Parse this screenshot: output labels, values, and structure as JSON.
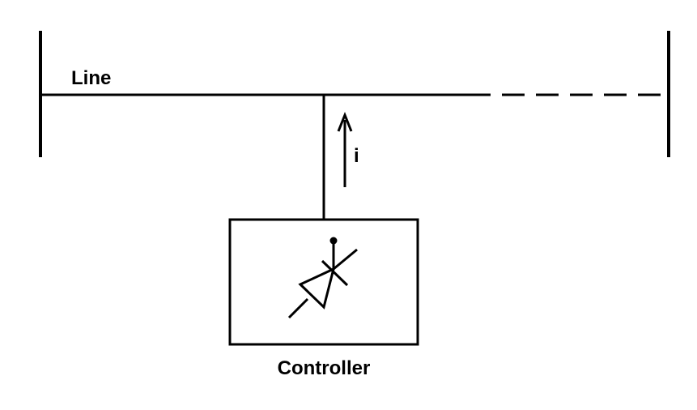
{
  "diagram": {
    "line_label": "Line",
    "current_label": "i",
    "controller_label": "Controller"
  },
  "colors": {
    "stroke": "#000000",
    "background": "#ffffff"
  }
}
